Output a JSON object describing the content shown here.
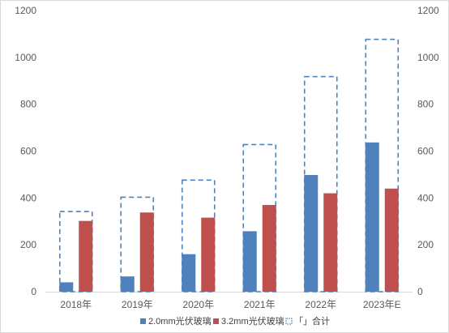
{
  "chart_data": {
    "type": "bar",
    "title": "",
    "xlabel": "",
    "ylabel": "",
    "categories": [
      "2018年",
      "2019年",
      "2020年",
      "2021年",
      "2022年",
      "2023年E"
    ],
    "ylim": [
      0,
      1200
    ],
    "yticks": [
      0,
      200,
      400,
      600,
      800,
      1000,
      1200
    ],
    "grid": false,
    "legend_position": "bottom",
    "series": [
      {
        "name": "2.0mm光伏玻璃",
        "color": "#4f81bd",
        "style": "bar",
        "values": [
          40,
          65,
          160,
          258,
          498,
          637
        ]
      },
      {
        "name": "3.2mm光伏玻璃",
        "color": "#c0504d",
        "style": "bar",
        "values": [
          302,
          338,
          316,
          370,
          420,
          440
        ]
      },
      {
        "name": "「」合计",
        "color": "#4f81bd",
        "style": "dashed-outline",
        "values": [
          342,
          403,
          476,
          628,
          918,
          1077
        ]
      }
    ]
  }
}
